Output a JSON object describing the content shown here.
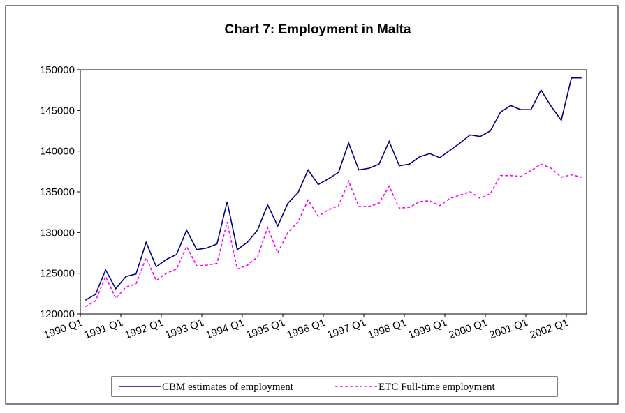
{
  "chart_data": {
    "type": "line",
    "title": "Chart 7: Employment in Malta",
    "categories": [
      "1990 Q1",
      null,
      null,
      null,
      "1991 Q1",
      null,
      null,
      null,
      "1992 Q1",
      null,
      null,
      null,
      "1993 Q1",
      null,
      null,
      null,
      "1994 Q1",
      null,
      null,
      null,
      "1995 Q1",
      null,
      null,
      null,
      "1996 Q1",
      null,
      null,
      null,
      "1997 Q1",
      null,
      null,
      null,
      "1998 Q1",
      null,
      null,
      null,
      "1999 Q1",
      null,
      null,
      null,
      "2000 Q1",
      null,
      null,
      null,
      "2001 Q1",
      null,
      null,
      null,
      "2002 Q1",
      null
    ],
    "series": [
      {
        "name": "CBM estimates of employment",
        "color": "#000080",
        "dashed": false,
        "values": [
          121700,
          122400,
          125400,
          123100,
          124600,
          124900,
          128800,
          125800,
          126700,
          127300,
          130300,
          127900,
          128100,
          128600,
          133800,
          127900,
          128800,
          130300,
          133400,
          130800,
          133600,
          134900,
          137700,
          135900,
          136600,
          137400,
          141000,
          137700,
          137900,
          138400,
          141200,
          138200,
          138400,
          139300,
          139700,
          139200,
          140100,
          141000,
          142000,
          141800,
          142500,
          144800,
          145600,
          145100,
          145100,
          147500,
          145500,
          143800,
          149000,
          149000
        ]
      },
      {
        "name": "ETC Full-time employment",
        "color": "#ff00ff",
        "dashed": true,
        "values": [
          120900,
          121600,
          124600,
          121900,
          123300,
          123700,
          126900,
          124100,
          125000,
          125500,
          128300,
          125900,
          126000,
          126200,
          131300,
          125500,
          126000,
          127000,
          130600,
          127500,
          130000,
          131300,
          134000,
          132000,
          132800,
          133300,
          136300,
          133200,
          133200,
          133600,
          135700,
          133000,
          133100,
          133800,
          133900,
          133300,
          134200,
          134600,
          135000,
          134200,
          134800,
          137000,
          137000,
          136900,
          137600,
          138400,
          137900,
          136800,
          137100,
          136800
        ]
      }
    ],
    "ylim": [
      120000,
      150000
    ],
    "yticks": [
      120000,
      125000,
      130000,
      135000,
      140000,
      145000,
      150000
    ],
    "grid": false,
    "legend": "bottom"
  }
}
